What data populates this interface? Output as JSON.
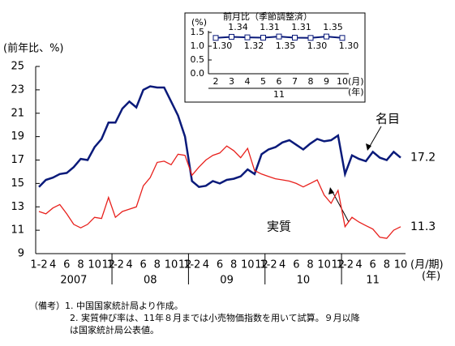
{
  "chart_data": [
    {
      "type": "line",
      "ylabel": "(前年比、%)",
      "categories": [
        "1-2",
        null,
        "4",
        null,
        "6",
        null,
        "8",
        null,
        "10",
        null,
        "12",
        "1-2",
        null,
        "4",
        null,
        "6",
        null,
        "8",
        null,
        "10",
        null,
        "12",
        "1-2",
        null,
        "4",
        null,
        "6",
        null,
        "8",
        null,
        "10",
        null,
        "12",
        "1-2",
        null,
        "4",
        null,
        "6",
        null,
        "8",
        null,
        "10",
        null,
        "12",
        "1-2",
        null,
        "4",
        null,
        "6",
        null,
        "8",
        null,
        "10"
      ],
      "year_labels": [
        "2007",
        "08",
        "09",
        "10",
        "11"
      ],
      "x_unit": "(月/期)",
      "x_unit2": "(年)",
      "ylim": [
        9,
        25
      ],
      "yticks": [
        9,
        11,
        13,
        15,
        17,
        19,
        21,
        23,
        25
      ],
      "series": [
        {
          "name": "名目",
          "color": "#0a1a7a",
          "values": [
            14.7,
            15.3,
            15.5,
            15.8,
            15.9,
            16.4,
            17.1,
            17.0,
            18.1,
            18.8,
            20.2,
            20.2,
            21.4,
            22.0,
            21.5,
            23.0,
            23.3,
            23.2,
            23.2,
            22.0,
            20.8,
            19.0,
            15.2,
            14.7,
            14.8,
            15.2,
            15.0,
            15.3,
            15.4,
            15.6,
            16.2,
            15.8,
            17.5,
            17.9,
            18.1,
            18.5,
            18.7,
            18.3,
            17.9,
            18.4,
            18.8,
            18.6,
            18.7,
            19.1,
            15.8,
            17.4,
            17.1,
            16.9,
            17.7,
            17.2,
            17.0,
            17.7,
            17.2
          ]
        },
        {
          "name": "実質",
          "color": "#e8201c",
          "values": [
            12.6,
            12.4,
            12.9,
            13.2,
            12.4,
            11.5,
            11.2,
            11.5,
            12.1,
            12.0,
            13.8,
            12.1,
            12.6,
            12.8,
            13.0,
            14.8,
            15.5,
            16.8,
            16.9,
            16.6,
            17.5,
            17.4,
            15.7,
            16.4,
            17.0,
            17.4,
            17.6,
            18.2,
            17.8,
            17.2,
            18.0,
            16.1,
            15.8,
            15.6,
            15.4,
            15.3,
            15.2,
            15.0,
            14.7,
            15.0,
            15.3,
            14.0,
            13.3,
            14.4,
            11.3,
            12.1,
            11.7,
            11.4,
            11.1,
            10.4,
            10.3,
            11.0,
            11.3
          ]
        }
      ]
    },
    {
      "type": "line-markers",
      "title": "前月比（季節調整済）",
      "ylabel": "(%)",
      "categories": [
        "2",
        "3",
        "4",
        "5",
        "6",
        "7",
        "8",
        "9",
        "10"
      ],
      "year_label": "11",
      "x_unit": "(月)",
      "x_unit2": "(年)",
      "ylim": [
        0,
        1.5
      ],
      "yticks": [
        {
          "value": 0,
          "label": "0.0"
        },
        0.5,
        {
          "value": 1,
          "label": "1.0"
        },
        1.5
      ],
      "color": "#0a1a7a",
      "values": [
        1.3,
        1.34,
        1.32,
        1.31,
        1.35,
        1.31,
        1.3,
        1.35,
        1.3
      ],
      "value_labels": [
        "1.30",
        "1.34",
        "1.32",
        "1.31",
        "1.35",
        "1.31",
        "1.30",
        "1.35",
        "1.30"
      ]
    }
  ],
  "notes": [
    "（備考）1. 中国国家統計局より作成。",
    "2. 実質伸び率は、11年８月までは小売物価指数を用いて試算。９月以降",
    "は国家統計局公表値。"
  ]
}
